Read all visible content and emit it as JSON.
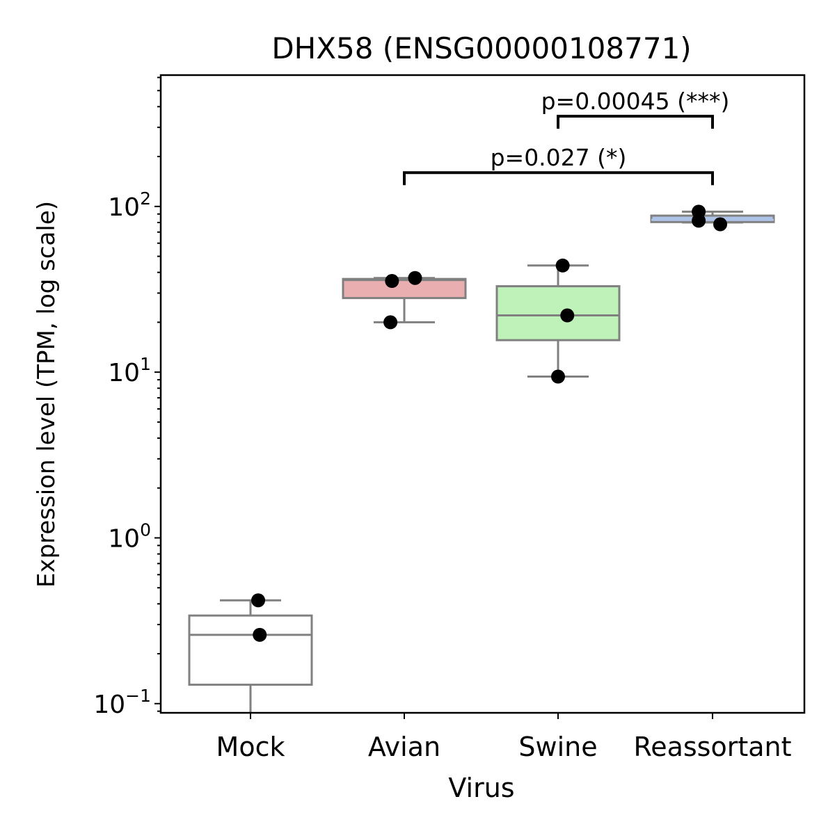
{
  "chart_data": {
    "type": "box",
    "title": "DHX58 (ENSG00000108771)",
    "xlabel": "Virus",
    "ylabel": "Expression level (TPM, log scale)",
    "yscale": "log",
    "ylim": [
      0.088,
      620
    ],
    "yticks": [
      {
        "value": 0.1,
        "base": "10",
        "exp": "−1"
      },
      {
        "value": 1,
        "base": "10",
        "exp": "0"
      },
      {
        "value": 10,
        "base": "10",
        "exp": "1"
      },
      {
        "value": 100,
        "base": "10",
        "exp": "2"
      }
    ],
    "categories": [
      "Mock",
      "Avian",
      "Swine",
      "Reassortant"
    ],
    "boxes": [
      {
        "category": "Mock",
        "color": "#ffffff",
        "whisker_low": 0.088,
        "q1": 0.13,
        "median": 0.26,
        "q3": 0.34,
        "whisker_high": 0.42,
        "median_color": "#808080"
      },
      {
        "category": "Avian",
        "color": "#e8aeb0",
        "whisker_low": 20,
        "q1": 28,
        "median": 36,
        "q3": 36.5,
        "whisker_high": 37,
        "median_color": "#808080"
      },
      {
        "category": "Swine",
        "color": "#bff2b8",
        "whisker_low": 9.4,
        "q1": 15.6,
        "median": 22,
        "q3": 33,
        "whisker_high": 44,
        "median_color": "#808080"
      },
      {
        "category": "Reassortant",
        "color": "#aec3e8",
        "whisker_low": 80,
        "q1": 80.5,
        "median": 83,
        "q3": 88,
        "whisker_high": 93,
        "median_color": "#aec3e8"
      }
    ],
    "points": [
      {
        "category": "Mock",
        "jitter": 0.05,
        "value": 0.42
      },
      {
        "category": "Mock",
        "jitter": 0.06,
        "value": 0.26
      },
      {
        "category": "Avian",
        "jitter": -0.08,
        "value": 35.5
      },
      {
        "category": "Avian",
        "jitter": 0.07,
        "value": 37
      },
      {
        "category": "Avian",
        "jitter": -0.09,
        "value": 20
      },
      {
        "category": "Swine",
        "jitter": 0.03,
        "value": 44
      },
      {
        "category": "Swine",
        "jitter": 0.06,
        "value": 22
      },
      {
        "category": "Swine",
        "jitter": 0.0,
        "value": 9.4
      },
      {
        "category": "Reassortant",
        "jitter": -0.09,
        "value": 93
      },
      {
        "category": "Reassortant",
        "jitter": -0.09,
        "value": 82
      },
      {
        "category": "Reassortant",
        "jitter": 0.05,
        "value": 78
      }
    ],
    "annotations": [
      {
        "from": "Avian",
        "to": "Reassortant",
        "y_bracket": 160,
        "text": "p=0.027 (*)"
      },
      {
        "from": "Swine",
        "to": "Reassortant",
        "y_bracket": 350,
        "text": "p=0.00045 (***)"
      }
    ],
    "colors": {
      "box_edge": "#808080",
      "point": "#000000",
      "bracket": "#000000"
    }
  }
}
